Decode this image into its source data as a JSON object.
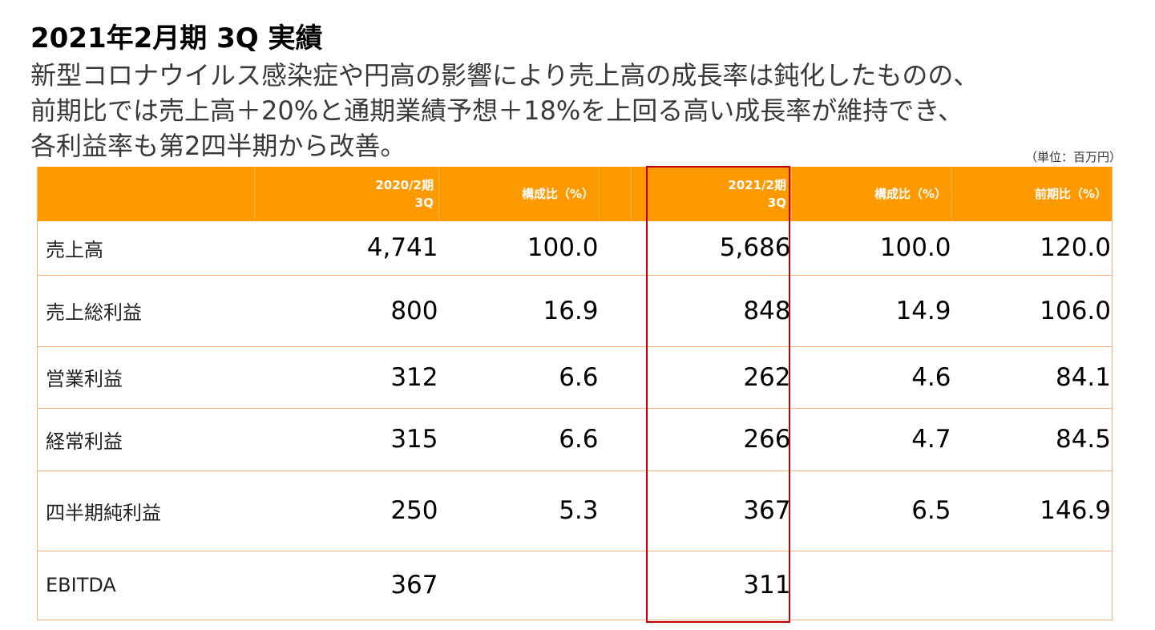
{
  "title": "2021年2月期 3Q 実績",
  "summary": {
    "line1": "新型コロナウイルス感染症や円高の影響により売上高の成長率は鈍化したものの、",
    "line2": "前期比では売上高＋20%と通期業績予想＋18%を上回る高い成長率が維持でき、",
    "line3": "各利益率も第2四半期から改善。"
  },
  "unit_note": "（単位：百万円）",
  "table": {
    "headers": {
      "col1_line1": "2020/2期",
      "col1_line2": "3Q",
      "col2": "構成比（%）",
      "col3_line1": "2021/2期",
      "col3_line2": "3Q",
      "col4": "構成比（%）",
      "col5": "前期比（%）"
    },
    "rows": [
      {
        "label": "売上高",
        "prev": "4,741",
        "prev_ratio": "100.0",
        "curr": "5,686",
        "curr_ratio": "100.0",
        "yoy": "120.0"
      },
      {
        "label": "売上総利益",
        "prev": "800",
        "prev_ratio": "16.9",
        "curr": "848",
        "curr_ratio": "14.9",
        "yoy": "106.0"
      },
      {
        "label": "営業利益",
        "prev": "312",
        "prev_ratio": "6.6",
        "curr": "262",
        "curr_ratio": "4.6",
        "yoy": "84.1"
      },
      {
        "label": "経常利益",
        "prev": "315",
        "prev_ratio": "6.6",
        "curr": "266",
        "curr_ratio": "4.7",
        "yoy": "84.5"
      },
      {
        "label": "四半期純利益",
        "prev": "250",
        "prev_ratio": "5.3",
        "curr": "367",
        "curr_ratio": "6.5",
        "yoy": "146.9"
      },
      {
        "label": "EBITDA",
        "prev": "367",
        "prev_ratio": "",
        "curr": "311",
        "curr_ratio": "",
        "yoy": ""
      }
    ]
  },
  "colors": {
    "header_bg": "#ff9900",
    "row_border": "#f4b183",
    "highlight_border": "#c00000"
  }
}
